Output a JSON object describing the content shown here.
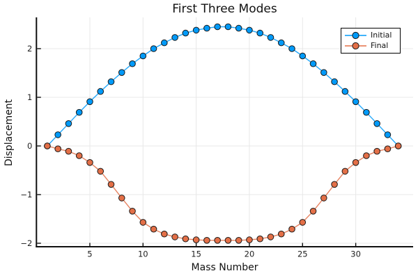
{
  "chart_data": {
    "type": "line",
    "title": "First Three Modes",
    "xlabel": "Mass Number",
    "ylabel": "Displacement",
    "x": [
      1,
      2,
      3,
      4,
      5,
      6,
      7,
      8,
      9,
      10,
      11,
      12,
      13,
      14,
      15,
      16,
      17,
      18,
      19,
      20,
      21,
      22,
      23,
      24,
      25,
      26,
      27,
      28,
      29,
      30,
      31,
      32,
      33,
      34
    ],
    "series": [
      {
        "name": "Initial",
        "color": "#009AF9",
        "marker": "circle",
        "marker_stroke": "#1a1a1a",
        "values": [
          0.0,
          0.23,
          0.46,
          0.69,
          0.91,
          1.12,
          1.32,
          1.51,
          1.69,
          1.85,
          2.0,
          2.12,
          2.23,
          2.32,
          2.38,
          2.42,
          2.45,
          2.45,
          2.42,
          2.38,
          2.32,
          2.23,
          2.12,
          2.0,
          1.85,
          1.69,
          1.51,
          1.32,
          1.12,
          0.91,
          0.69,
          0.46,
          0.23,
          0.0
        ]
      },
      {
        "name": "Final",
        "color": "#E36F47",
        "marker": "circle",
        "marker_stroke": "#1a1a1a",
        "values": [
          0.0,
          -0.06,
          -0.11,
          -0.2,
          -0.34,
          -0.52,
          -0.79,
          -1.07,
          -1.34,
          -1.57,
          -1.71,
          -1.81,
          -1.87,
          -1.91,
          -1.93,
          -1.94,
          -1.94,
          -1.94,
          -1.94,
          -1.93,
          -1.91,
          -1.87,
          -1.81,
          -1.71,
          -1.57,
          -1.34,
          -1.07,
          -0.79,
          -0.52,
          -0.34,
          -0.2,
          -0.11,
          -0.06,
          0.0
        ]
      }
    ],
    "xticks": [
      5,
      10,
      15,
      20,
      25,
      30
    ],
    "yticks": [
      2,
      1,
      0,
      -1,
      -2
    ],
    "xlim": [
      0,
      35.4
    ],
    "ylim": [
      -2.07,
      2.64
    ],
    "grid": true,
    "grid_color": "#E8E8E8",
    "axis_color": "#0f0f0f",
    "legend_position": "top-right",
    "legend": [
      "Initial",
      "Final"
    ]
  }
}
